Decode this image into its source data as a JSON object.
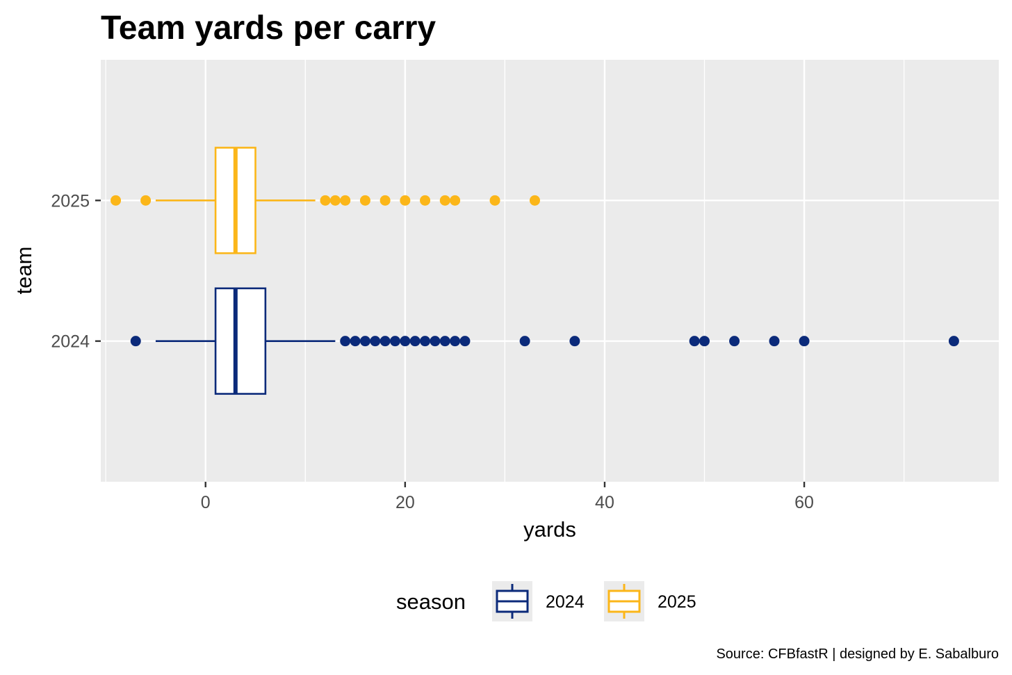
{
  "chart_data": {
    "type": "boxplot",
    "title": "Team yards per carry",
    "xlabel": "yards",
    "ylabel": "team",
    "xlim": [
      -10.5,
      79.5
    ],
    "x_ticks": [
      0,
      20,
      40,
      60
    ],
    "x_tick_labels": [
      "0",
      "20",
      "40",
      "60"
    ],
    "categories": [
      "2024",
      "2025"
    ],
    "legend": {
      "title": "season",
      "position": "bottom",
      "entries": [
        "2024",
        "2025"
      ]
    },
    "series": [
      {
        "name": "2024",
        "color": "#0b2a7a",
        "whisker_low": -5,
        "q1": 1,
        "median": 3,
        "q3": 6,
        "whisker_high": 13,
        "outliers": [
          -7,
          14,
          15,
          16,
          17,
          18,
          19,
          20,
          21,
          22,
          23,
          24,
          25,
          26,
          32,
          37,
          49,
          50,
          53,
          57,
          60,
          75
        ]
      },
      {
        "name": "2025",
        "color": "#fbb619",
        "whisker_low": -5,
        "q1": 1,
        "median": 3,
        "q3": 5,
        "whisker_high": 11,
        "outliers": [
          -9,
          -6,
          12,
          13,
          14,
          16,
          18,
          20,
          22,
          24,
          25,
          29,
          33
        ]
      }
    ],
    "caption": "Source: CFBfastR | designed by E. Sabalburo"
  }
}
